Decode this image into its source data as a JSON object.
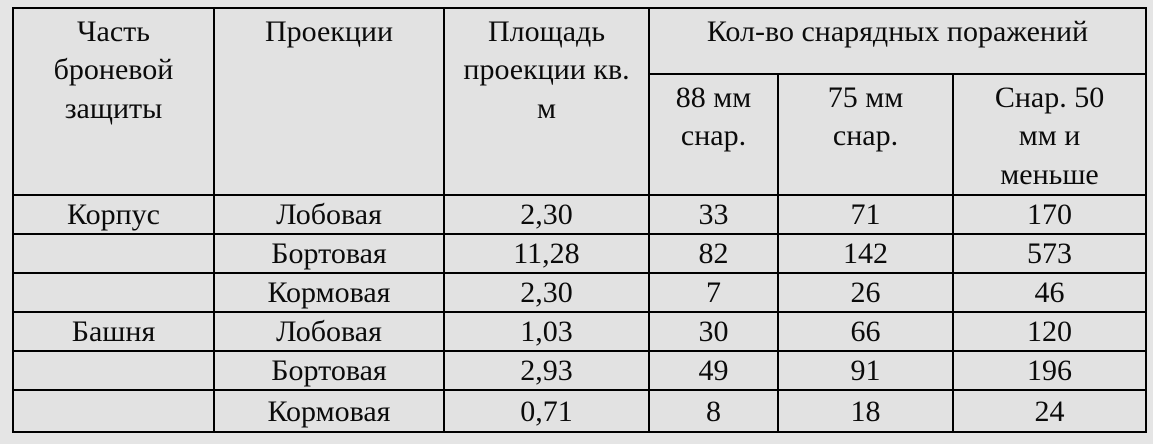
{
  "table": {
    "header": {
      "part": "Часть\nброневой\nзащиты",
      "projection": "Проекции",
      "area": "Площадь\nпроекции кв.\nм",
      "hits_group": "Кол-во снарядных поражений",
      "hits_88": "88 мм\nснар.",
      "hits_75": "75 мм\nснар.",
      "hits_50": "Снар. 50\nмм и\nменьше"
    },
    "rows": [
      {
        "part": "Корпус",
        "projection": "Лобовая",
        "area": "2,30",
        "h88": "33",
        "h75": "71",
        "h50": "170"
      },
      {
        "part": "",
        "projection": "Бортовая",
        "area": "11,28",
        "h88": "82",
        "h75": "142",
        "h50": "573"
      },
      {
        "part": "",
        "projection": "Кормовая",
        "area": "2,30",
        "h88": "7",
        "h75": "26",
        "h50": "46"
      },
      {
        "part": "Башня",
        "projection": "Лобовая",
        "area": "1,03",
        "h88": "30",
        "h75": "66",
        "h50": "120"
      },
      {
        "part": "",
        "projection": "Бортовая",
        "area": "2,93",
        "h88": "49",
        "h75": "91",
        "h50": "196"
      },
      {
        "part": "",
        "projection": "Кормовая",
        "area": "0,71",
        "h88": "8",
        "h75": "18",
        "h50": "24"
      }
    ],
    "colors": {
      "background": "#e5e5e5",
      "cell_background": "#e2e2e2",
      "border": "#000000",
      "text": "#0b0b0b"
    }
  }
}
